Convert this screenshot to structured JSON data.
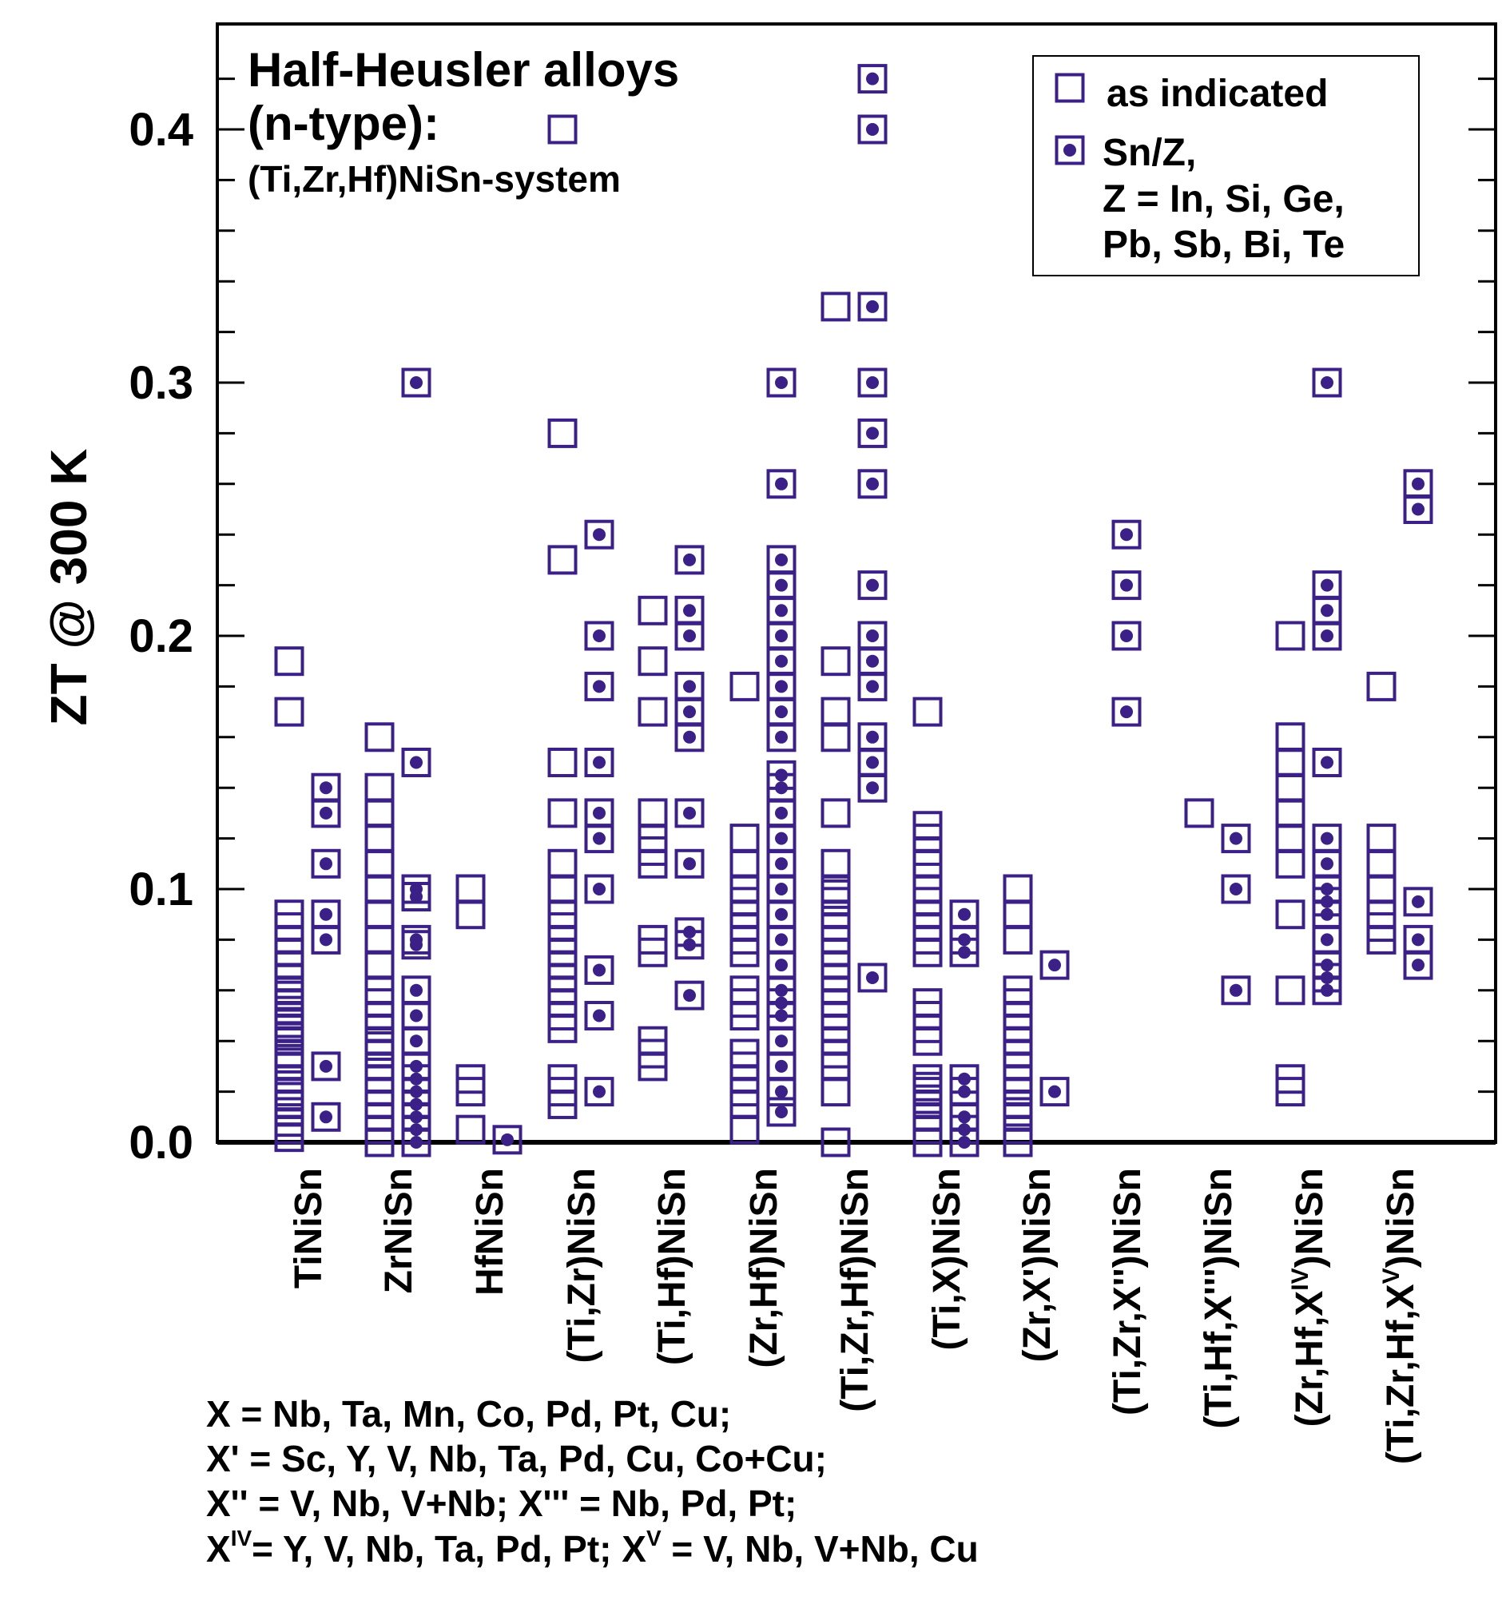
{
  "chart_data": {
    "type": "scatter",
    "ylabel": "ZT @ 300 K",
    "ylim": [
      0.0,
      0.44
    ],
    "yticks": [
      "0.0",
      "0.1",
      "0.2",
      "0.3",
      "0.4"
    ],
    "title_lines": [
      "Half-Heusler alloys",
      "(n-type):",
      "(Ti,Zr,Hf)NiSn-system"
    ],
    "categories": [
      {
        "id": "tinisn",
        "parts": [
          {
            "t": "TiNiSn"
          }
        ]
      },
      {
        "id": "zrnisn",
        "parts": [
          {
            "t": "ZrNiSn"
          }
        ]
      },
      {
        "id": "hfnisn",
        "parts": [
          {
            "t": "HfNiSn"
          }
        ]
      },
      {
        "id": "ti-zr-nisn",
        "parts": [
          {
            "t": "(Ti,Zr)NiSn"
          }
        ]
      },
      {
        "id": "ti-hf-nisn",
        "parts": [
          {
            "t": "(Ti,Hf)NiSn"
          }
        ]
      },
      {
        "id": "zr-hf-nisn",
        "parts": [
          {
            "t": "(Zr,Hf)NiSn"
          }
        ]
      },
      {
        "id": "ti-zr-hf-nisn",
        "parts": [
          {
            "t": "(Ti,Zr,Hf)NiSn"
          }
        ]
      },
      {
        "id": "ti-x-nisn",
        "parts": [
          {
            "t": "(Ti,X)NiSn"
          }
        ]
      },
      {
        "id": "zr-x1-nisn",
        "parts": [
          {
            "t": "(Zr,X')NiSn"
          }
        ]
      },
      {
        "id": "ti-zr-x2-nisn",
        "parts": [
          {
            "t": "(Ti,Zr,X'')NiSn"
          }
        ]
      },
      {
        "id": "ti-hf-x3-nisn",
        "parts": [
          {
            "t": "(Ti,Hf,X''')NiSn"
          }
        ]
      },
      {
        "id": "zr-hf-x4-nisn",
        "parts": [
          {
            "t": "(Zr,Hf,X"
          },
          {
            "t": "IV",
            "sup": true
          },
          {
            "t": ")NiSn"
          }
        ]
      },
      {
        "id": "ti-zr-hf-x5-nisn",
        "parts": [
          {
            "t": "(Ti,Zr,Hf,X"
          },
          {
            "t": "V",
            "sup": true
          },
          {
            "t": ")NiSn"
          }
        ]
      }
    ],
    "series": [
      {
        "name": "as indicated",
        "marker": "open-square",
        "points": {
          "tinisn": [
            0.19,
            0.17,
            0.09,
            0.085,
            0.08,
            0.075,
            0.07,
            0.065,
            0.06,
            0.058,
            0.055,
            0.052,
            0.05,
            0.047,
            0.045,
            0.042,
            0.04,
            0.035,
            0.033,
            0.03,
            0.025,
            0.02,
            0.018,
            0.015,
            0.012,
            0.008,
            0.005,
            0.002
          ],
          "zrnisn": [
            0.16,
            0.14,
            0.13,
            0.12,
            0.11,
            0.1,
            0.09,
            0.08,
            0.07,
            0.06,
            0.055,
            0.05,
            0.045,
            0.04,
            0.038,
            0.035,
            0.03,
            0.025,
            0.02,
            0.015,
            0.01,
            0.005,
            0.0
          ],
          "hfnisn": [
            0.1,
            0.09,
            0.025,
            0.02,
            0.005
          ],
          "ti-zr-nisn": [
            0.4,
            0.28,
            0.23,
            0.15,
            0.13,
            0.11,
            0.1,
            0.09,
            0.085,
            0.08,
            0.075,
            0.07,
            0.065,
            0.06,
            0.055,
            0.05,
            0.045,
            0.025,
            0.02,
            0.015
          ],
          "ti-hf-nisn": [
            0.21,
            0.19,
            0.17,
            0.13,
            0.12,
            0.115,
            0.11,
            0.08,
            0.075,
            0.04,
            0.035,
            0.03
          ],
          "zr-hf-nisn": [
            0.18,
            0.12,
            0.11,
            0.1,
            0.095,
            0.09,
            0.085,
            0.08,
            0.075,
            0.06,
            0.055,
            0.05,
            0.035,
            0.03,
            0.025,
            0.02,
            0.015,
            0.005
          ],
          "ti-zr-hf-nisn": [
            0.33,
            0.19,
            0.17,
            0.16,
            0.13,
            0.11,
            0.1,
            0.098,
            0.095,
            0.09,
            0.085,
            0.08,
            0.075,
            0.07,
            0.065,
            0.06,
            0.055,
            0.05,
            0.045,
            0.04,
            0.035,
            0.03,
            0.02,
            0.0
          ],
          "ti-x-nisn": [
            0.17,
            0.125,
            0.12,
            0.115,
            0.11,
            0.1,
            0.095,
            0.09,
            0.085,
            0.08,
            0.075,
            0.055,
            0.05,
            0.045,
            0.04,
            0.025,
            0.022,
            0.02,
            0.017,
            0.015,
            0.01,
            0.005,
            0.0
          ],
          "zr-x1-nisn": [
            0.1,
            0.09,
            0.08,
            0.06,
            0.055,
            0.05,
            0.045,
            0.04,
            0.035,
            0.03,
            0.025,
            0.02,
            0.015,
            0.012,
            0.01,
            0.005,
            0.0
          ],
          "ti-zr-x2-nisn": [],
          "ti-hf-x3-nisn": [
            0.13
          ],
          "zr-hf-x4-nisn": [
            0.2,
            0.16,
            0.15,
            0.14,
            0.13,
            0.12,
            0.11,
            0.09,
            0.06,
            0.025,
            0.02
          ],
          "ti-zr-hf-x5-nisn": [
            0.18,
            0.12,
            0.11,
            0.1,
            0.09,
            0.085,
            0.08
          ]
        }
      },
      {
        "name": "Sn/Z, Z = In, Si, Ge, Pb, Sb, Bi, Te",
        "marker": "square-dot",
        "points": {
          "tinisn": [
            0.14,
            0.13,
            0.11,
            0.09,
            0.08,
            0.03,
            0.01
          ],
          "zrnisn": [
            0.3,
            0.15,
            0.1,
            0.097,
            0.08,
            0.078,
            0.06,
            0.05,
            0.04,
            0.03,
            0.025,
            0.02,
            0.015,
            0.01,
            0.005,
            0.0
          ],
          "hfnisn": [
            0.001
          ],
          "ti-zr-nisn": [
            0.24,
            0.2,
            0.18,
            0.15,
            0.13,
            0.12,
            0.1,
            0.068,
            0.05,
            0.02
          ],
          "ti-hf-nisn": [
            0.23,
            0.21,
            0.2,
            0.18,
            0.17,
            0.16,
            0.13,
            0.11,
            0.083,
            0.078,
            0.058
          ],
          "zr-hf-nisn": [
            0.3,
            0.26,
            0.23,
            0.22,
            0.21,
            0.2,
            0.19,
            0.18,
            0.17,
            0.16,
            0.145,
            0.14,
            0.13,
            0.12,
            0.11,
            0.1,
            0.09,
            0.08,
            0.07,
            0.06,
            0.055,
            0.05,
            0.04,
            0.03,
            0.02,
            0.012
          ],
          "ti-zr-hf-nisn": [
            0.42,
            0.4,
            0.33,
            0.3,
            0.28,
            0.26,
            0.22,
            0.2,
            0.19,
            0.18,
            0.16,
            0.15,
            0.14,
            0.065
          ],
          "ti-x-nisn": [
            0.09,
            0.08,
            0.075,
            0.025,
            0.02,
            0.01,
            0.005,
            0.0
          ],
          "zr-x1-nisn": [
            0.07,
            0.02
          ],
          "ti-zr-x2-nisn": [
            0.24,
            0.22,
            0.2,
            0.17
          ],
          "ti-hf-x3-nisn": [
            0.12,
            0.1,
            0.06
          ],
          "zr-hf-x4-nisn": [
            0.3,
            0.22,
            0.21,
            0.2,
            0.15,
            0.12,
            0.11,
            0.1,
            0.095,
            0.09,
            0.08,
            0.07,
            0.065,
            0.06
          ],
          "ti-zr-hf-x5-nisn": [
            0.26,
            0.25,
            0.095,
            0.08,
            0.07
          ]
        }
      }
    ],
    "legend": {
      "position": "top-right",
      "entries": [
        {
          "lines": [
            "as indicated"
          ]
        },
        {
          "lines": [
            "Sn/Z,",
            "Z =  In, Si, Ge,",
            "Pb, Sb, Bi, Te"
          ]
        }
      ]
    },
    "footnote_lines": [
      [
        {
          "t": "X = Nb, Ta, Mn, Co, Pd, Pt, Cu;"
        }
      ],
      [
        {
          "t": "X' = Sc, Y, V, Nb, Ta,  Pd, Cu, Co+Cu;"
        }
      ],
      [
        {
          "t": "X'' = V, Nb, V+Nb;  X''' = Nb, Pd, Pt;"
        }
      ],
      [
        {
          "t": "X"
        },
        {
          "t": "IV",
          "sup": true
        },
        {
          "t": "= Y, V, Nb, Ta, Pd, Pt;  X"
        },
        {
          "t": "V",
          "sup": true
        },
        {
          "t": " = V, Nb, V+Nb, Cu"
        }
      ]
    ]
  },
  "colors": {
    "marker": "#3b2187",
    "axis": "#000000",
    "text": "#000000",
    "background": "#ffffff"
  }
}
